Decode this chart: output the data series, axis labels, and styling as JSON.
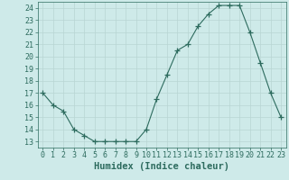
{
  "x": [
    0,
    1,
    2,
    3,
    4,
    5,
    6,
    7,
    8,
    9,
    10,
    11,
    12,
    13,
    14,
    15,
    16,
    17,
    18,
    19,
    20,
    21,
    22,
    23
  ],
  "y": [
    17,
    16,
    15.5,
    14,
    13.5,
    13,
    13,
    13,
    13,
    13,
    14,
    16.5,
    18.5,
    20.5,
    21,
    22.5,
    23.5,
    24.2,
    24.2,
    24.2,
    22,
    19.5,
    17,
    15
  ],
  "xlabel": "Humidex (Indice chaleur)",
  "xlim": [
    -0.5,
    23.5
  ],
  "ylim": [
    12.5,
    24.5
  ],
  "yticks": [
    13,
    14,
    15,
    16,
    17,
    18,
    19,
    20,
    21,
    22,
    23,
    24
  ],
  "xticks": [
    0,
    1,
    2,
    3,
    4,
    5,
    6,
    7,
    8,
    9,
    10,
    11,
    12,
    13,
    14,
    15,
    16,
    17,
    18,
    19,
    20,
    21,
    22,
    23
  ],
  "line_color": "#2d6b5e",
  "marker": "+",
  "marker_size": 4,
  "bg_color": "#ceeae9",
  "grid_color": "#b8d5d3",
  "tick_label_fontsize": 6,
  "xlabel_fontsize": 7.5
}
